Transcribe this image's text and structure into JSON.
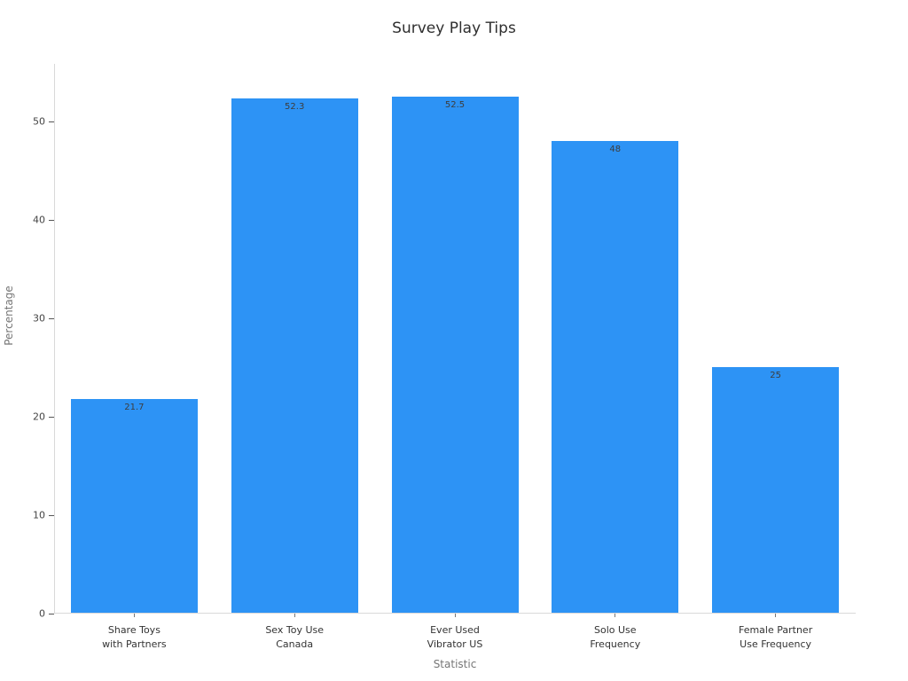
{
  "chart_data": {
    "type": "bar",
    "title": "Survey Play Tips",
    "xlabel": "Statistic",
    "ylabel": "Percentage",
    "categories": [
      "Share Toys\nwith Partners",
      "Sex Toy Use\nCanada",
      "Ever Used\nVibrator US",
      "Solo Use\nFrequency",
      "Female Partner\nUse Frequency"
    ],
    "values": [
      21.7,
      52.3,
      52.5,
      48,
      25
    ],
    "value_labels": [
      "21.7",
      "52.3",
      "52.5",
      "48",
      "25"
    ],
    "yticks": [
      0,
      10,
      20,
      30,
      40,
      50
    ],
    "ylim": [
      0,
      55.9
    ],
    "grid": false,
    "legend": null,
    "bar_color": "#2d93f5",
    "spine_color": "#d9d9d9",
    "title_color": "#2e2e2e",
    "axis_label_color": "#767676",
    "tick_label_color": "#444444",
    "value_label_color": "#3d3d3d"
  }
}
